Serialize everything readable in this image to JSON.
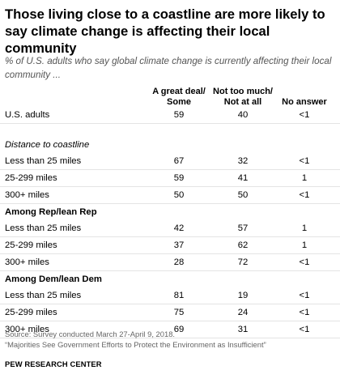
{
  "title": "Those living close to a coastline are more likely to say climate change is affecting their local community",
  "subtitle": "% of U.S. adults who say global climate change is currently affecting their local community ...",
  "chart_data": {
    "type": "table",
    "columns": [
      "A great deal/ Some",
      "Not too much/ Not at all",
      "No answer"
    ],
    "column_lines": [
      [
        "A great deal/",
        "Some"
      ],
      [
        "Not too much/",
        "Not at all"
      ],
      [
        "No answer"
      ]
    ],
    "rows": [
      {
        "kind": "data",
        "label": "U.S. adults",
        "values": [
          "59",
          "40",
          "<1"
        ]
      },
      {
        "kind": "spacer"
      },
      {
        "kind": "section",
        "style": "italic",
        "label": "Distance to coastline"
      },
      {
        "kind": "data",
        "label": "Less than 25 miles",
        "values": [
          "67",
          "32",
          "<1"
        ]
      },
      {
        "kind": "data",
        "label": "25-299 miles",
        "values": [
          "59",
          "41",
          "1"
        ]
      },
      {
        "kind": "data",
        "label": "300+ miles",
        "values": [
          "50",
          "50",
          "<1"
        ]
      },
      {
        "kind": "section",
        "style": "bold",
        "label": "Among Rep/lean Rep"
      },
      {
        "kind": "data",
        "label": "Less than 25 miles",
        "values": [
          "42",
          "57",
          "1"
        ]
      },
      {
        "kind": "data",
        "label": "25-299 miles",
        "values": [
          "37",
          "62",
          "1"
        ]
      },
      {
        "kind": "data",
        "label": "300+ miles",
        "values": [
          "28",
          "72",
          "<1"
        ]
      },
      {
        "kind": "section",
        "style": "bold",
        "label": "Among Dem/lean Dem"
      },
      {
        "kind": "data",
        "label": "Less than 25 miles",
        "values": [
          "81",
          "19",
          "<1"
        ]
      },
      {
        "kind": "data",
        "label": "25-299 miles",
        "values": [
          "75",
          "24",
          "<1"
        ]
      },
      {
        "kind": "data",
        "label": "300+ miles",
        "values": [
          "69",
          "31",
          "<1"
        ]
      }
    ]
  },
  "source": {
    "line1": "Source: Survey conducted March 27-April 9, 2018.",
    "line2": "“Majorities See Government Efforts to Protect the Environment as Insufficient”"
  },
  "footer": "PEW RESEARCH CENTER"
}
